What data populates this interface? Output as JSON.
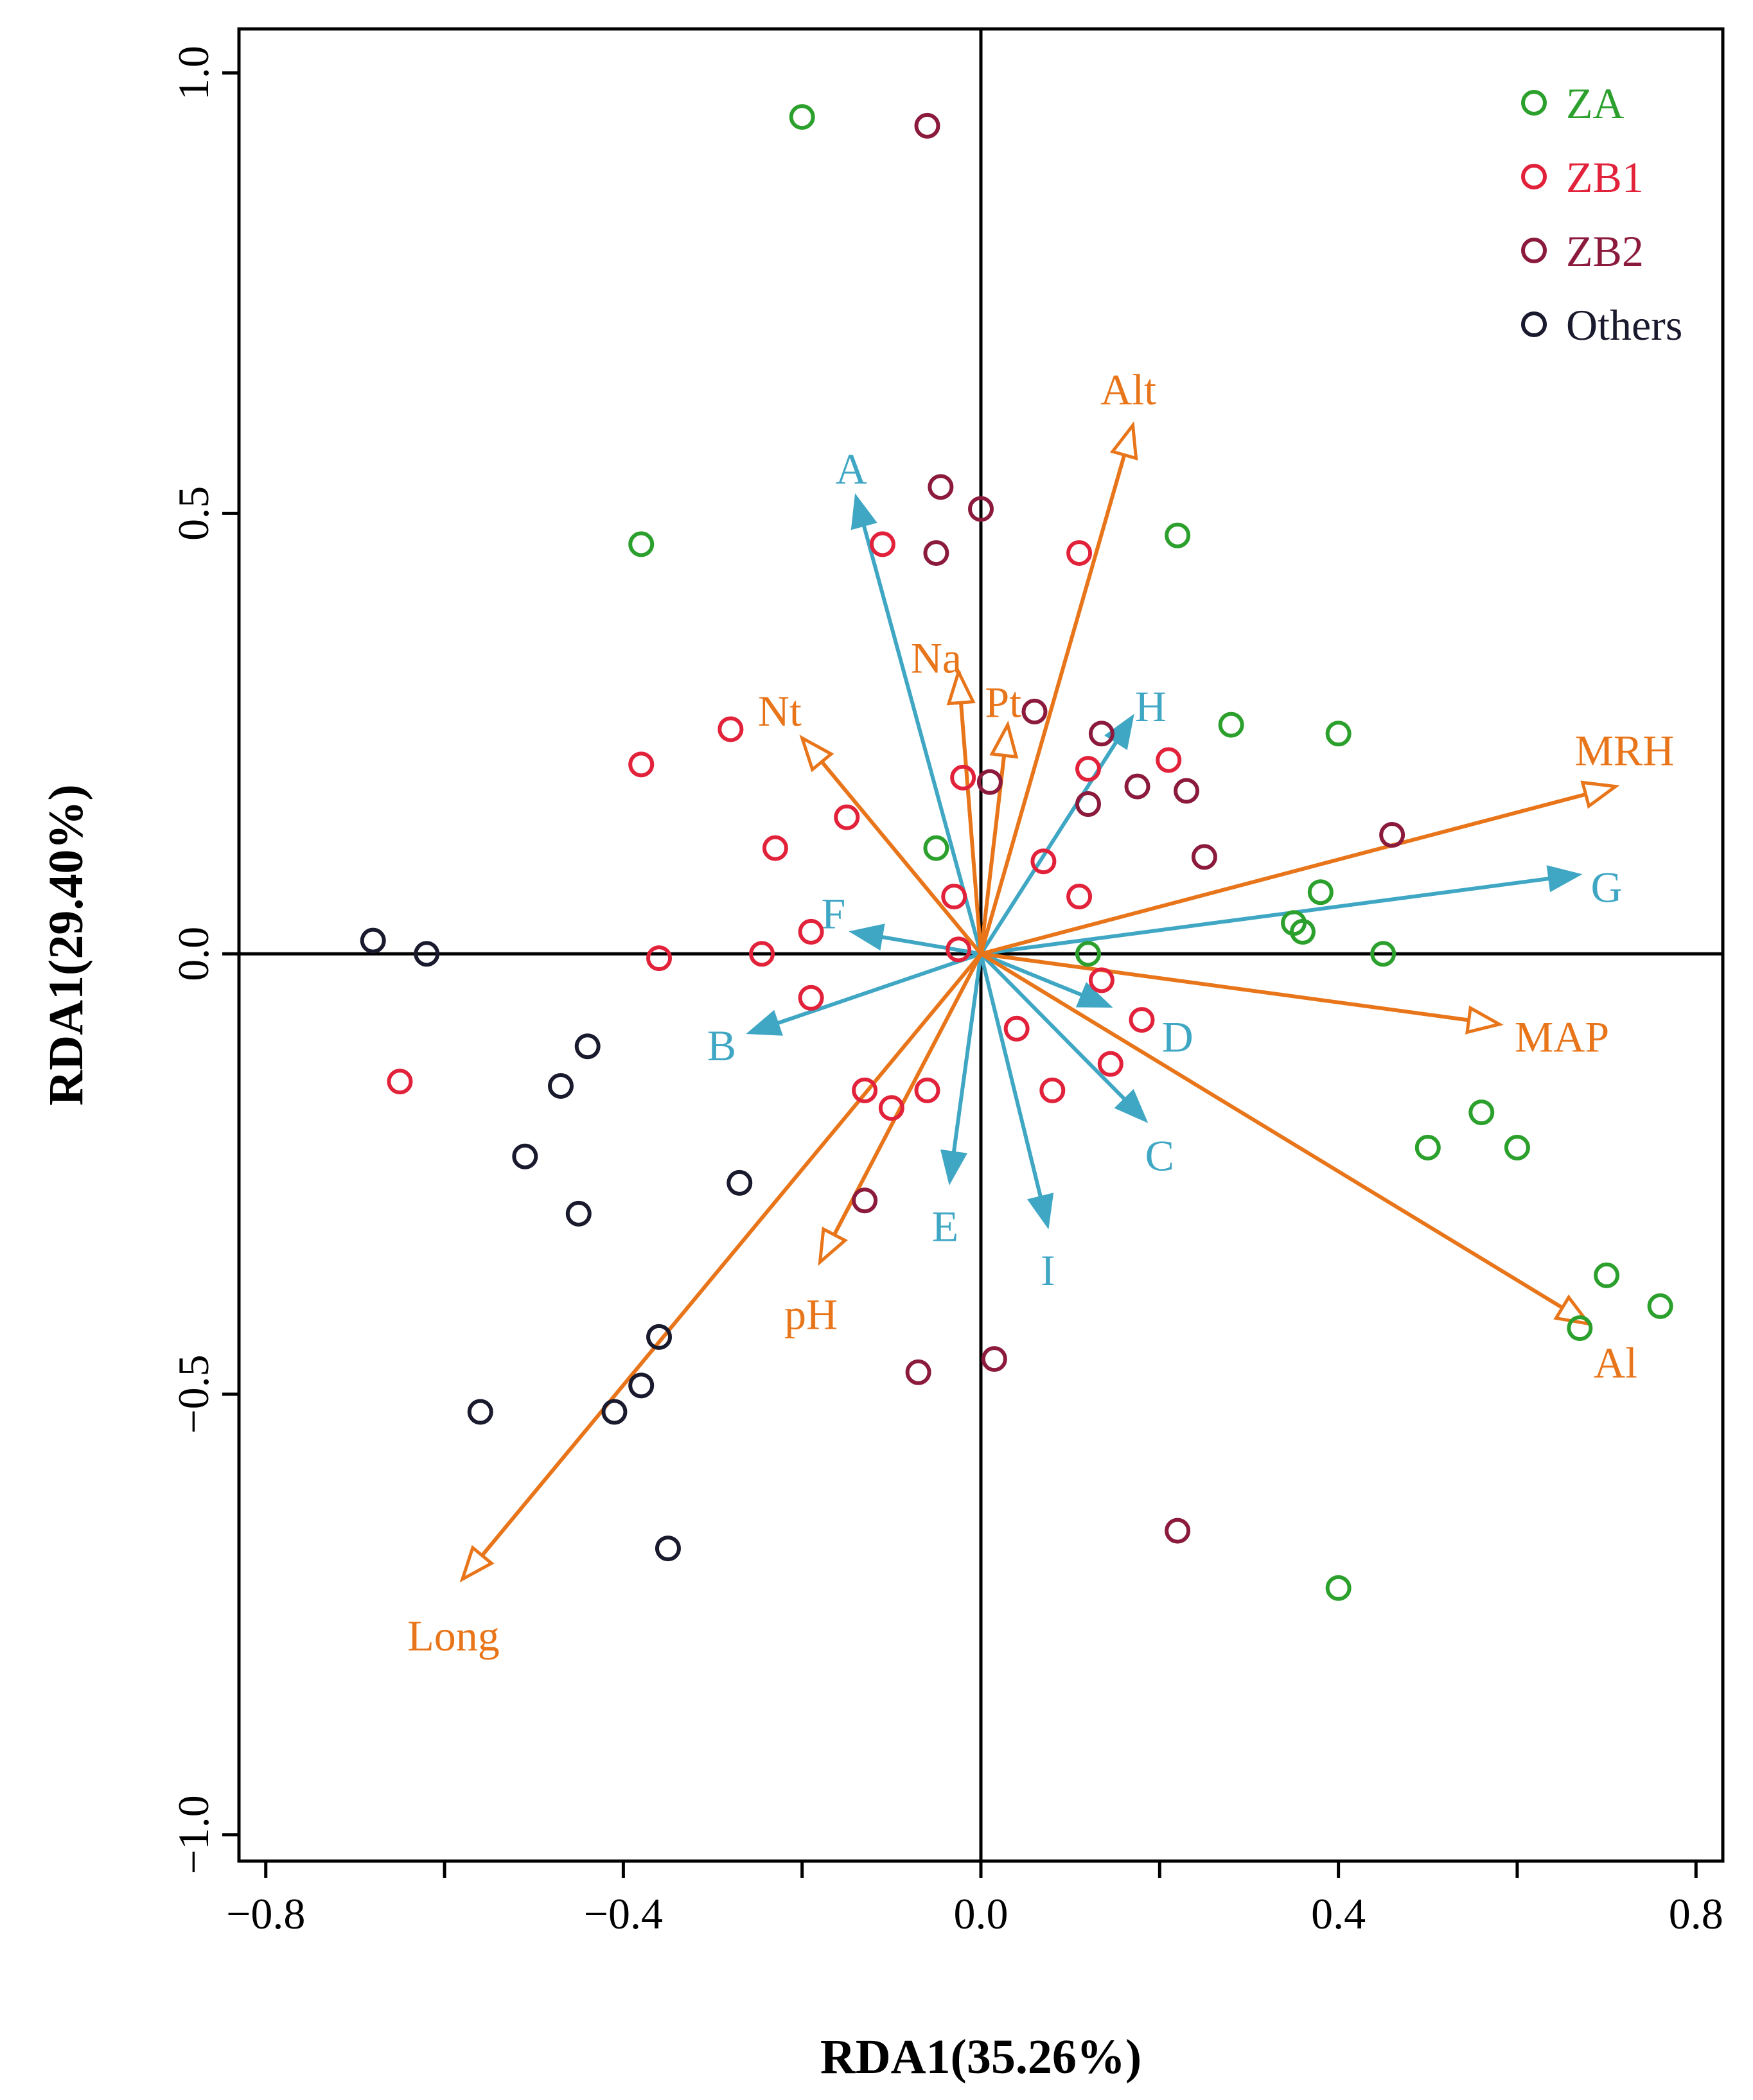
{
  "chart_data": {
    "type": "scatter",
    "title": "",
    "xlabel": "RDA1(35.26%)",
    "ylabel": "RDA1(29.40%)",
    "xlim": [
      -0.83,
      0.83
    ],
    "ylim": [
      -1.03,
      1.05
    ],
    "xticks": [
      -0.8,
      -0.6,
      -0.4,
      -0.2,
      0.0,
      0.2,
      0.4,
      0.6,
      0.8
    ],
    "xtick_labels": [
      "−0.8",
      "",
      "−0.4",
      "",
      "0.0",
      "",
      "0.4",
      "",
      "0.8"
    ],
    "yticks": [
      -1.0,
      -0.5,
      0.0,
      0.5,
      1.0
    ],
    "ytick_labels": [
      "−1.0",
      "−0.5",
      "0.0",
      "0.5",
      "1.0"
    ],
    "grid": false,
    "zero_lines": true,
    "legend_position": "top-right",
    "series": [
      {
        "name": "ZA",
        "color": "#2ca02c",
        "points": [
          [
            -0.2,
            0.95
          ],
          [
            -0.38,
            0.465
          ],
          [
            0.22,
            0.475
          ],
          [
            0.28,
            0.26
          ],
          [
            0.4,
            0.25
          ],
          [
            -0.05,
            0.12
          ],
          [
            0.38,
            0.07
          ],
          [
            0.35,
            0.035
          ],
          [
            0.36,
            0.025
          ],
          [
            0.12,
            0.0
          ],
          [
            0.45,
            0.0
          ],
          [
            0.56,
            -0.18
          ],
          [
            0.5,
            -0.22
          ],
          [
            0.6,
            -0.22
          ],
          [
            0.7,
            -0.365
          ],
          [
            0.76,
            -0.4
          ],
          [
            0.67,
            -0.425
          ],
          [
            0.4,
            -0.72
          ]
        ]
      },
      {
        "name": "ZB1",
        "color": "#e2223a",
        "points": [
          [
            -0.11,
            0.465
          ],
          [
            0.11,
            0.455
          ],
          [
            -0.28,
            0.255
          ],
          [
            -0.38,
            0.215
          ],
          [
            0.21,
            0.22
          ],
          [
            0.12,
            0.21
          ],
          [
            -0.02,
            0.2
          ],
          [
            -0.15,
            0.155
          ],
          [
            -0.23,
            0.12
          ],
          [
            0.07,
            0.105
          ],
          [
            -0.03,
            0.065
          ],
          [
            0.11,
            0.065
          ],
          [
            -0.19,
            0.025
          ],
          [
            -0.025,
            0.005
          ],
          [
            -0.36,
            -0.005
          ],
          [
            -0.245,
            0.0
          ],
          [
            0.135,
            -0.03
          ],
          [
            -0.19,
            -0.05
          ],
          [
            0.18,
            -0.075
          ],
          [
            0.04,
            -0.085
          ],
          [
            0.145,
            -0.125
          ],
          [
            -0.65,
            -0.145
          ],
          [
            -0.13,
            -0.155
          ],
          [
            -0.06,
            -0.155
          ],
          [
            0.08,
            -0.155
          ],
          [
            -0.1,
            -0.175
          ]
        ]
      },
      {
        "name": "ZB2",
        "color": "#8b1a3c",
        "points": [
          [
            -0.06,
            0.94
          ],
          [
            -0.045,
            0.53
          ],
          [
            0.0,
            0.505
          ],
          [
            -0.05,
            0.455
          ],
          [
            0.06,
            0.275
          ],
          [
            0.135,
            0.25
          ],
          [
            0.01,
            0.195
          ],
          [
            0.175,
            0.19
          ],
          [
            0.23,
            0.185
          ],
          [
            0.12,
            0.17
          ],
          [
            0.25,
            0.11
          ],
          [
            0.46,
            0.135
          ],
          [
            -0.13,
            -0.28
          ],
          [
            -0.07,
            -0.475
          ],
          [
            0.015,
            -0.46
          ],
          [
            0.22,
            -0.655
          ]
        ]
      },
      {
        "name": "Others",
        "color": "#1a1a2e",
        "points": [
          [
            -0.68,
            0.015
          ],
          [
            -0.62,
            0.0
          ],
          [
            -0.44,
            -0.105
          ],
          [
            -0.47,
            -0.15
          ],
          [
            -0.51,
            -0.23
          ],
          [
            -0.45,
            -0.295
          ],
          [
            -0.27,
            -0.26
          ],
          [
            -0.36,
            -0.435
          ],
          [
            -0.38,
            -0.49
          ],
          [
            -0.41,
            -0.52
          ],
          [
            -0.56,
            -0.52
          ],
          [
            -0.35,
            -0.675
          ]
        ]
      }
    ],
    "vectors": [
      {
        "name": "A",
        "x": -0.14,
        "y": 0.52,
        "color": "#3fa7c4",
        "head": "filled",
        "label_x": -0.145,
        "label_y": 0.55
      },
      {
        "name": "B",
        "x": -0.26,
        "y": -0.09,
        "color": "#3fa7c4",
        "head": "filled",
        "label_x": -0.29,
        "label_y": -0.105
      },
      {
        "name": "C",
        "x": 0.185,
        "y": -0.19,
        "color": "#3fa7c4",
        "head": "filled",
        "label_x": 0.2,
        "label_y": -0.23
      },
      {
        "name": "D",
        "x": 0.145,
        "y": -0.06,
        "color": "#3fa7c4",
        "head": "filled",
        "label_x": 0.22,
        "label_y": -0.095
      },
      {
        "name": "E",
        "x": -0.035,
        "y": -0.26,
        "color": "#3fa7c4",
        "head": "filled",
        "label_x": -0.04,
        "label_y": -0.31
      },
      {
        "name": "F",
        "x": -0.145,
        "y": 0.025,
        "color": "#3fa7c4",
        "head": "filled",
        "label_x": -0.165,
        "label_y": 0.045
      },
      {
        "name": "G",
        "x": 0.67,
        "y": 0.09,
        "color": "#3fa7c4",
        "head": "filled",
        "label_x": 0.7,
        "label_y": 0.075
      },
      {
        "name": "H",
        "x": 0.17,
        "y": 0.27,
        "color": "#3fa7c4",
        "head": "filled",
        "label_x": 0.19,
        "label_y": 0.28
      },
      {
        "name": "I",
        "x": 0.075,
        "y": -0.31,
        "color": "#3fa7c4",
        "head": "filled",
        "label_x": 0.075,
        "label_y": -0.36
      },
      {
        "name": "Alt",
        "x": 0.17,
        "y": 0.6,
        "color": "#e8751a",
        "head": "open",
        "label_x": 0.165,
        "label_y": 0.64
      },
      {
        "name": "Na",
        "x": -0.025,
        "y": 0.32,
        "color": "#e8751a",
        "head": "open",
        "label_x": -0.05,
        "label_y": 0.335
      },
      {
        "name": "Pt",
        "x": 0.03,
        "y": 0.26,
        "color": "#e8751a",
        "head": "open",
        "label_x": 0.025,
        "label_y": 0.285
      },
      {
        "name": "Nt",
        "x": -0.2,
        "y": 0.245,
        "color": "#e8751a",
        "head": "open",
        "label_x": -0.225,
        "label_y": 0.275
      },
      {
        "name": "MRH",
        "x": 0.71,
        "y": 0.19,
        "color": "#e8751a",
        "head": "open",
        "label_x": 0.72,
        "label_y": 0.23
      },
      {
        "name": "MAP",
        "x": 0.58,
        "y": -0.08,
        "color": "#e8751a",
        "head": "open",
        "label_x": 0.65,
        "label_y": -0.095
      },
      {
        "name": "Al",
        "x": 0.68,
        "y": -0.42,
        "color": "#e8751a",
        "head": "open",
        "label_x": 0.71,
        "label_y": -0.465
      },
      {
        "name": "pH",
        "x": -0.18,
        "y": -0.35,
        "color": "#e8751a",
        "head": "open",
        "label_x": -0.19,
        "label_y": -0.41
      },
      {
        "name": "Long",
        "x": -0.58,
        "y": -0.71,
        "color": "#e8751a",
        "head": "open",
        "label_x": -0.59,
        "label_y": -0.775
      }
    ]
  }
}
